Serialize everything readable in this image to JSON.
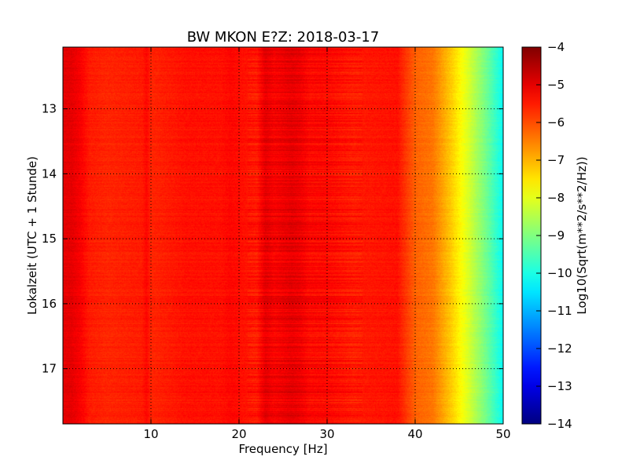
{
  "chart_data": {
    "type": "heatmap",
    "title": "BW MKON E?Z: 2018-03-17",
    "xlabel": "Frequency [Hz]",
    "ylabel": "Lokalzeit (UTC + 1 Stunde)",
    "colorbar_label": "Log10(Sqrt(m**2/s**2/Hz))",
    "xlim": [
      0,
      50
    ],
    "ylim": [
      12.05,
      17.85
    ],
    "y_inverted": true,
    "x_ticks": [
      "10",
      "20",
      "30",
      "40",
      "50"
    ],
    "y_ticks": [
      "13",
      "14",
      "15",
      "16",
      "17"
    ],
    "colorbar_range": [
      -14,
      -4
    ],
    "colorbar_ticks": [
      "-4",
      "-5",
      "-6",
      "-7",
      "-8",
      "-9",
      "-10",
      "-11",
      "-12",
      "-13",
      "-14"
    ],
    "colormap": "jet",
    "grid": "dotted",
    "spectral_profile": {
      "frequency_hz": [
        0,
        1,
        2,
        3,
        5,
        9,
        9.5,
        10,
        14,
        18,
        19,
        22,
        23,
        24,
        25,
        26,
        27,
        28,
        30,
        33,
        38,
        40,
        42,
        44,
        46,
        48,
        50
      ],
      "log10_amplitude": [
        -5.0,
        -5.0,
        -5.2,
        -5.5,
        -5.6,
        -5.5,
        -5.3,
        -5.6,
        -5.4,
        -5.4,
        -5.3,
        -5.5,
        -5.0,
        -5.2,
        -5.1,
        -5.0,
        -5.1,
        -5.3,
        -5.3,
        -5.5,
        -5.4,
        -6.2,
        -6.4,
        -7.2,
        -8.1,
        -9.1,
        -10.2
      ]
    }
  }
}
